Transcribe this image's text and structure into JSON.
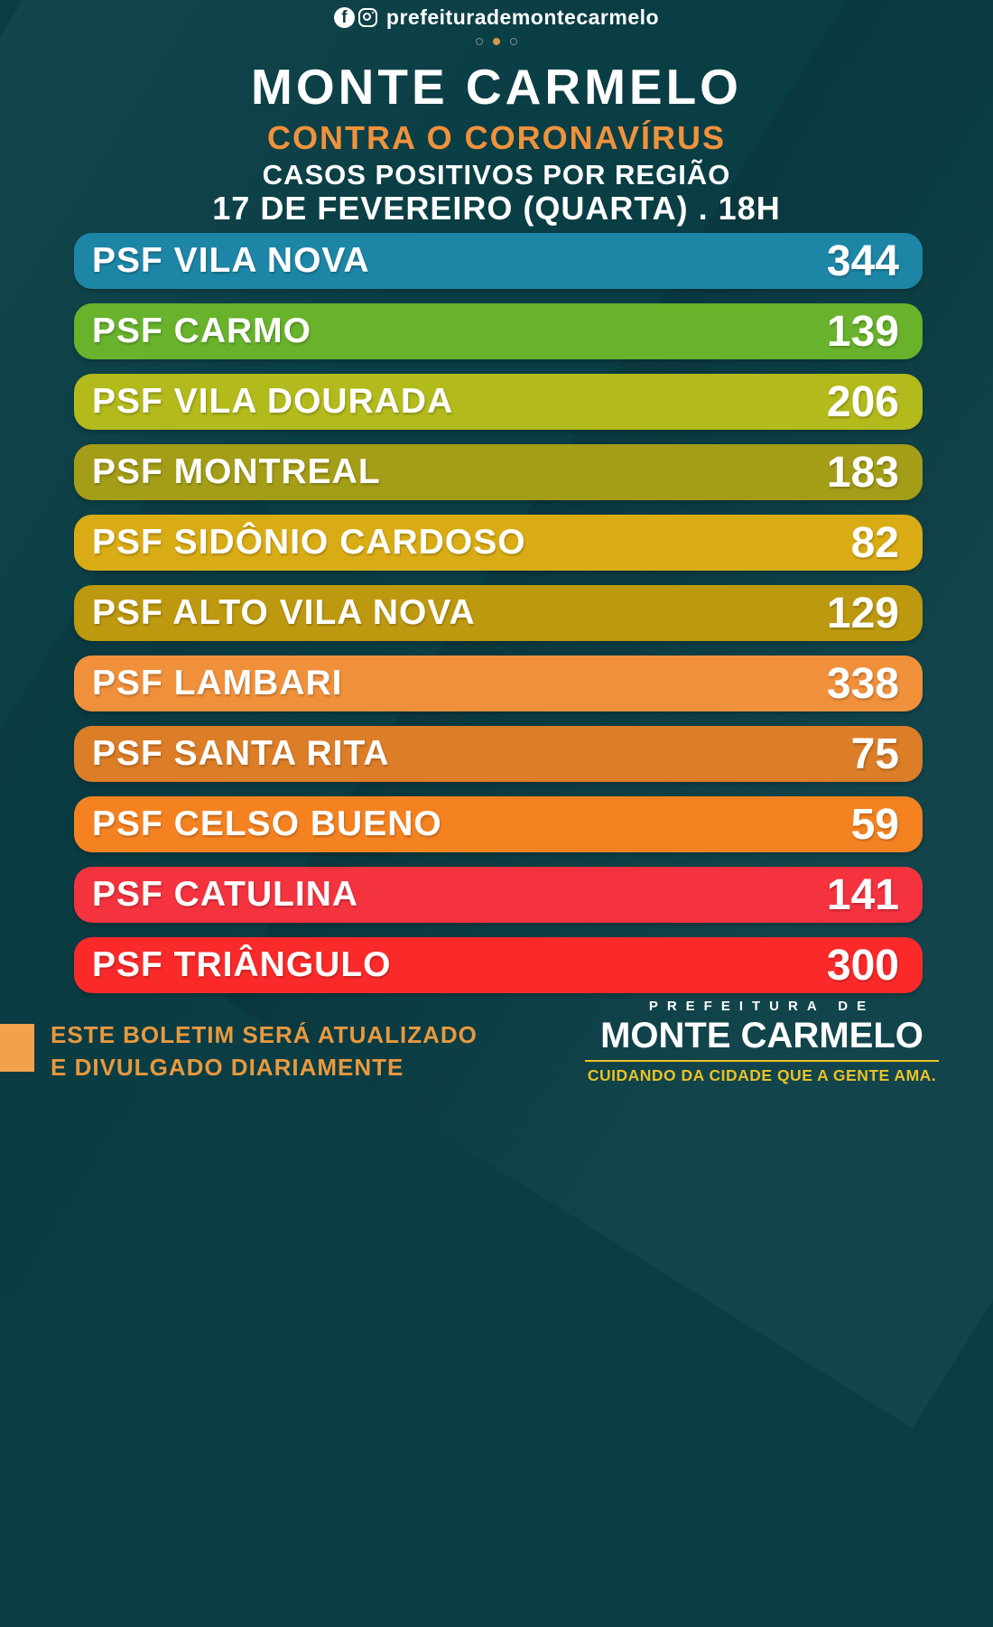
{
  "colors": {
    "background": "#0a3e45",
    "accent_orange": "#f0923c",
    "footer_note_orange": "#e8993f",
    "footer_square_orange": "#f2a24b",
    "logo_yellow": "#e9c228",
    "white": "#ffffff"
  },
  "header": {
    "social_handle": "prefeiturademontecarmelo",
    "icons": [
      "facebook-icon",
      "instagram-icon"
    ],
    "carousel": {
      "count": 3,
      "active_index": 1
    }
  },
  "title": {
    "line1": "MONTE CARMELO",
    "line2": "CONTRA O CORONAVÍRUS",
    "line3": "CASOS POSITIVOS POR REGIÃO",
    "line4": "17 DE FEVEREIRO (QUARTA) . 18H"
  },
  "chart_data": {
    "type": "table",
    "title": "CASOS POSITIVOS POR REGIÃO",
    "subtitle": "17 DE FEVEREIRO (QUARTA) . 18H",
    "categories": [
      "PSF VILA NOVA",
      "PSF CARMO",
      "PSF VILA DOURADA",
      "PSF MONTREAL",
      "PSF SIDÔNIO CARDOSO",
      "PSF ALTO VILA NOVA",
      "PSF LAMBARI",
      "PSF SANTA RITA",
      "PSF CELSO BUENO",
      "PSF CATULINA",
      "PSF TRIÂNGULO"
    ],
    "values": [
      344,
      139,
      206,
      183,
      82,
      129,
      338,
      75,
      59,
      141,
      300
    ]
  },
  "regions": [
    {
      "label": "PSF VILA NOVA",
      "value": "344",
      "color": "#1d86a6"
    },
    {
      "label": "PSF CARMO",
      "value": "139",
      "color": "#68b22c"
    },
    {
      "label": "PSF VILA DOURADA",
      "value": "206",
      "color": "#b3ba1b"
    },
    {
      "label": "PSF MONTREAL",
      "value": "183",
      "color": "#a49d17"
    },
    {
      "label": "PSF SIDÔNIO CARDOSO",
      "value": "82",
      "color": "#d9ac15"
    },
    {
      "label": "PSF ALTO VILA NOVA",
      "value": "129",
      "color": "#bd990f"
    },
    {
      "label": "PSF LAMBARI",
      "value": "338",
      "color": "#f0903b"
    },
    {
      "label": "PSF SANTA RITA",
      "value": "75",
      "color": "#dc7d27"
    },
    {
      "label": "PSF CELSO BUENO",
      "value": "59",
      "color": "#f58220"
    },
    {
      "label": "PSF CATULINA",
      "value": "141",
      "color": "#f4333f"
    },
    {
      "label": "PSF TRIÂNGULO",
      "value": "300",
      "color": "#fb2a2a"
    }
  ],
  "footer": {
    "note_line1": "ESTE BOLETIM SERÁ ATUALIZADO",
    "note_line2": "E DIVULGADO DIARIAMENTE",
    "logo": {
      "top": "PREFEITURA DE",
      "name": "MONTE CARMELO",
      "slogan": "CUIDANDO DA CIDADE QUE A GENTE AMA."
    }
  }
}
